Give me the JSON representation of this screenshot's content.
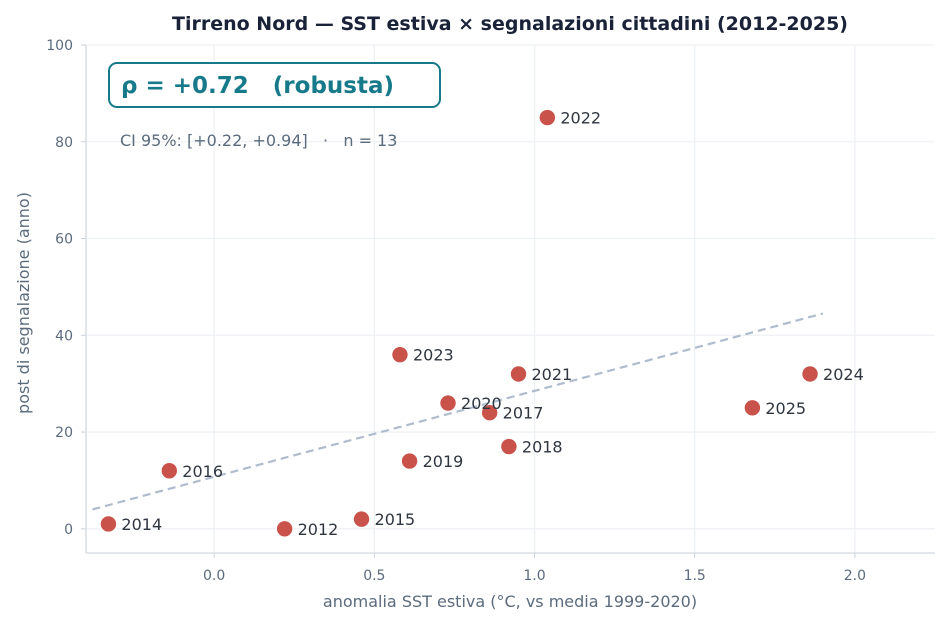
{
  "chart_data": {
    "type": "scatter",
    "title": "Tirreno Nord — SST estiva × segnalazioni cittadini (2012-2025)",
    "xlabel": "anomalia SST estiva (°C, vs media 1999-2020)",
    "ylabel": "post di segnalazione (anno)",
    "xlim": [
      -0.4,
      2.25
    ],
    "ylim": [
      -5,
      100
    ],
    "xticks": [
      "0.0",
      "0.5",
      "1.0",
      "1.5",
      "2.0"
    ],
    "yticks": [
      "0",
      "20",
      "40",
      "60",
      "80",
      "100"
    ],
    "grid": true,
    "points": [
      {
        "label": "2012",
        "x": 0.22,
        "y": 0
      },
      {
        "label": "2014",
        "x": -0.33,
        "y": 1
      },
      {
        "label": "2015",
        "x": 0.46,
        "y": 2
      },
      {
        "label": "2016",
        "x": -0.14,
        "y": 12
      },
      {
        "label": "2017",
        "x": 0.86,
        "y": 24
      },
      {
        "label": "2018",
        "x": 0.92,
        "y": 17
      },
      {
        "label": "2019",
        "x": 0.61,
        "y": 14
      },
      {
        "label": "2020",
        "x": 0.73,
        "y": 26
      },
      {
        "label": "2021",
        "x": 0.95,
        "y": 32
      },
      {
        "label": "2022",
        "x": 1.04,
        "y": 85
      },
      {
        "label": "2023",
        "x": 0.58,
        "y": 36
      },
      {
        "label": "2024",
        "x": 1.86,
        "y": 32
      },
      {
        "label": "2025",
        "x": 1.68,
        "y": 25
      }
    ],
    "trendline": {
      "x": [
        -0.38,
        1.9
      ],
      "y": [
        4,
        44.5
      ]
    },
    "annotation": {
      "rho": "ρ = +0.72   (robusta)",
      "ci": "CI 95%: [+0.22, +0.94]   ·   n = 13"
    },
    "colors": {
      "point": "#c9524a",
      "point_edge": "#ffffff",
      "trend": "#b0bccd",
      "grid": "#eef1f4",
      "accent": "#177a8a"
    }
  }
}
